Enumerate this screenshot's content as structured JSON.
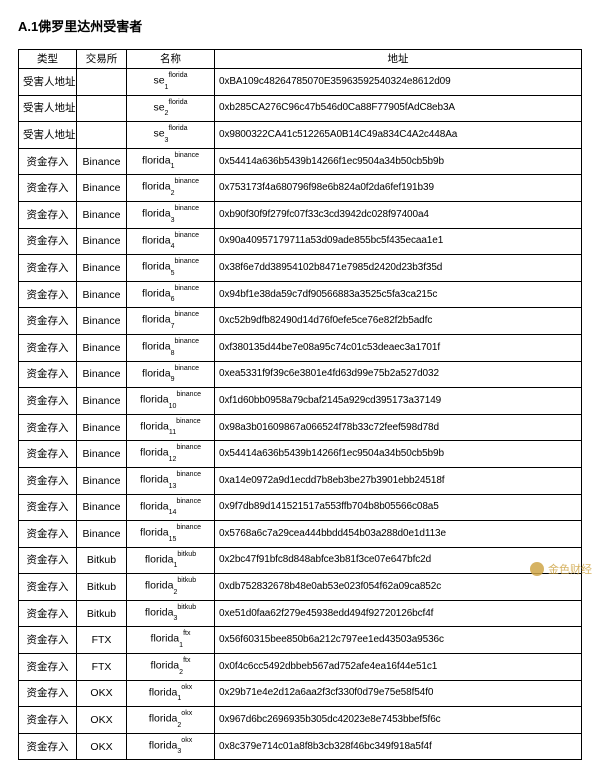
{
  "title": "A.1佛罗里达州受害者",
  "columns": [
    "类型",
    "交易所",
    "名称",
    "地址"
  ],
  "watermark": "金色财经",
  "name_style": {
    "base_font": "Arial",
    "base_size_pt": 10.5,
    "sub_size_pt": 7,
    "sup_size_pt": 7
  },
  "colors": {
    "text": "#000000",
    "border": "#000000",
    "background": "#ffffff",
    "watermark": "#cfa648"
  },
  "rows": [
    {
      "type": "受害人地址",
      "exchange": "",
      "name_base": "se",
      "name_sub": "1",
      "name_sup": "florida",
      "address": "0xBA109c48264785070E35963592540324e8612d09"
    },
    {
      "type": "受害人地址",
      "exchange": "",
      "name_base": "se",
      "name_sub": "2",
      "name_sup": "florida",
      "address": "0xb285CA276C96c47b546d0Ca88F77905fAdC8eb3A"
    },
    {
      "type": "受害人地址",
      "exchange": "",
      "name_base": "se",
      "name_sub": "3",
      "name_sup": "florida",
      "address": "0x9800322CA41c512265A0B14C49a834C4A2c448Aa"
    },
    {
      "type": "资金存入",
      "exchange": "Binance",
      "name_base": "florida",
      "name_sub": "1",
      "name_sup": "binance",
      "address": "0x54414a636b5439b14266f1ec9504a34b50cb5b9b"
    },
    {
      "type": "资金存入",
      "exchange": "Binance",
      "name_base": "florida",
      "name_sub": "2",
      "name_sup": "binance",
      "address": "0x753173f4a680796f98e6b824a0f2da6fef191b39"
    },
    {
      "type": "资金存入",
      "exchange": "Binance",
      "name_base": "florida",
      "name_sub": "3",
      "name_sup": "binance",
      "address": "0xb90f30f9f279fc07f33c3cd3942dc028f97400a4"
    },
    {
      "type": "资金存入",
      "exchange": "Binance",
      "name_base": "florida",
      "name_sub": "4",
      "name_sup": "binance",
      "address": "0x90a40957179711a53d09ade855bc5f435ecaa1e1"
    },
    {
      "type": "资金存入",
      "exchange": "Binance",
      "name_base": "florida",
      "name_sub": "5",
      "name_sup": "binance",
      "address": "0x38f6e7dd38954102b8471e7985d2420d23b3f35d"
    },
    {
      "type": "资金存入",
      "exchange": "Binance",
      "name_base": "florida",
      "name_sub": "6",
      "name_sup": "binance",
      "address": "0x94bf1e38da59c7df90566883a3525c5fa3ca215c"
    },
    {
      "type": "资金存入",
      "exchange": "Binance",
      "name_base": "florida",
      "name_sub": "7",
      "name_sup": "binance",
      "address": "0xc52b9dfb82490d14d76f0efe5ce76e82f2b5adfc"
    },
    {
      "type": "资金存入",
      "exchange": "Binance",
      "name_base": "florida",
      "name_sub": "8",
      "name_sup": "binance",
      "address": "0xf380135d44be7e08a95c74c01c53deaec3a1701f"
    },
    {
      "type": "资金存入",
      "exchange": "Binance",
      "name_base": "florida",
      "name_sub": "9",
      "name_sup": "binance",
      "address": "0xea5331f9f39c6e3801e4fd63d99e75b2a527d032"
    },
    {
      "type": "资金存入",
      "exchange": "Binance",
      "name_base": "florida",
      "name_sub": "10",
      "name_sup": "binance",
      "address": "0xf1d60bb0958a79cbaf2145a929cd395173a37149"
    },
    {
      "type": "资金存入",
      "exchange": "Binance",
      "name_base": "florida",
      "name_sub": "11",
      "name_sup": "binance",
      "address": "0x98a3b01609867a066524f78b33c72feef598d78d"
    },
    {
      "type": "资金存入",
      "exchange": "Binance",
      "name_base": "florida",
      "name_sub": "12",
      "name_sup": "binance",
      "address": "0x54414a636b5439b14266f1ec9504a34b50cb5b9b"
    },
    {
      "type": "资金存入",
      "exchange": "Binance",
      "name_base": "florida",
      "name_sub": "13",
      "name_sup": "binance",
      "address": "0xa14e0972a9d1ecdd7b8eb3be27b3901ebb24518f"
    },
    {
      "type": "资金存入",
      "exchange": "Binance",
      "name_base": "florida",
      "name_sub": "14",
      "name_sup": "binance",
      "address": "0x9f7db89d141521517a553ffb704b8b05566c08a5"
    },
    {
      "type": "资金存入",
      "exchange": "Binance",
      "name_base": "florida",
      "name_sub": "15",
      "name_sup": "binance",
      "address": "0x5768a6c7a29cea444bbdd454b03a288d0e1d113e"
    },
    {
      "type": "资金存入",
      "exchange": "Bitkub",
      "name_base": "florida",
      "name_sub": "1",
      "name_sup": "bitkub",
      "address": "0x2bc47f91bfc8d848abfce3b81f3ce07e647bfc2d"
    },
    {
      "type": "资金存入",
      "exchange": "Bitkub",
      "name_base": "florida",
      "name_sub": "2",
      "name_sup": "bitkub",
      "address": "0xdb752832678b48e0ab53e023f054f62a09ca852c"
    },
    {
      "type": "资金存入",
      "exchange": "Bitkub",
      "name_base": "florida",
      "name_sub": "3",
      "name_sup": "bitkub",
      "address": "0xe51d0faa62f279e45938edd494f92720126bcf4f"
    },
    {
      "type": "资金存入",
      "exchange": "FTX",
      "name_base": "florida",
      "name_sub": "1",
      "name_sup": "ftx",
      "address": "0x56f60315bee850b6a212c797ee1ed43503a9536c"
    },
    {
      "type": "资金存入",
      "exchange": "FTX",
      "name_base": "florida",
      "name_sub": "2",
      "name_sup": "ftx",
      "address": "0x0f4c6cc5492dbbeb567ad752afe4ea16f44e51c1"
    },
    {
      "type": "资金存入",
      "exchange": "OKX",
      "name_base": "florida",
      "name_sub": "1",
      "name_sup": "okx",
      "address": "0x29b71e4e2d12a6aa2f3cf330f0d79e75e58f54f0"
    },
    {
      "type": "资金存入",
      "exchange": "OKX",
      "name_base": "florida",
      "name_sub": "2",
      "name_sup": "okx",
      "address": "0x967d6bc2696935b305dc42023e8e7453bbef5f6c"
    },
    {
      "type": "资金存入",
      "exchange": "OKX",
      "name_base": "florida",
      "name_sub": "3",
      "name_sup": "okx",
      "address": "0x8c379e714c01a8f8b3cb328f46bc349f918a5f4f"
    }
  ]
}
